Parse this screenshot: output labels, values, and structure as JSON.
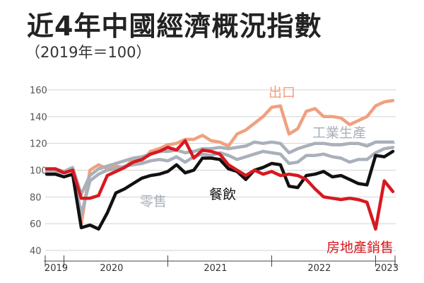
{
  "chart_data": {
    "type": "line",
    "title": "近4年中國經濟概況指數",
    "subtitle": "（2019年＝100）",
    "xlabel": "",
    "ylabel": "",
    "x_tick_labels": [
      "2019",
      "2020",
      "2021",
      "2022",
      "2023"
    ],
    "y_ticks": [
      40,
      60,
      80,
      100,
      120,
      140,
      160
    ],
    "ylim": [
      40,
      162
    ],
    "grid": "horizontal",
    "x": [
      "2019-11",
      "2019-12",
      "2020-01",
      "2020-02",
      "2020-03",
      "2020-04",
      "2020-05",
      "2020-06",
      "2020-07",
      "2020-08",
      "2020-09",
      "2020-10",
      "2020-11",
      "2020-12",
      "2021-01",
      "2021-02",
      "2021-03",
      "2021-04",
      "2021-05",
      "2021-06",
      "2021-07",
      "2021-08",
      "2021-09",
      "2021-10",
      "2021-11",
      "2021-12",
      "2022-01",
      "2022-02",
      "2022-03",
      "2022-04",
      "2022-05",
      "2022-06",
      "2022-07",
      "2022-08",
      "2022-09",
      "2022-10",
      "2022-11",
      "2022-12",
      "2023-01",
      "2023-02",
      "2023-03"
    ],
    "series": [
      {
        "name": "出口",
        "color": "#f0a080",
        "values": [
          101,
          101,
          99,
          100,
          60,
          100,
          104,
          101,
          103,
          102,
          108,
          107,
          114,
          116,
          119,
          120,
          123,
          123,
          126,
          122,
          121,
          118,
          127,
          130,
          135,
          140,
          147,
          148,
          127,
          131,
          144,
          146,
          140,
          140,
          139,
          134,
          137,
          140,
          148,
          151,
          152
        ]
      },
      {
        "name": "工業生產",
        "color": "#a9b0b9",
        "values": [
          100,
          100,
          99,
          102,
          82,
          96,
          101,
          103,
          105,
          107,
          109,
          110,
          112,
          114,
          114,
          115,
          113,
          114,
          116,
          116,
          117,
          116,
          117,
          118,
          121,
          120,
          121,
          120,
          113,
          116,
          118,
          120,
          120,
          119,
          119,
          120,
          120,
          118,
          121,
          121,
          121
        ]
      },
      {
        "name": "零售",
        "color": "#a9b0b9",
        "values": [
          99,
          99,
          98,
          100,
          67,
          92,
          97,
          100,
          101,
          103,
          104,
          105,
          107,
          108,
          107,
          110,
          106,
          110,
          112,
          111,
          113,
          111,
          108,
          110,
          112,
          114,
          113,
          112,
          105,
          106,
          111,
          111,
          112,
          110,
          109,
          106,
          108,
          108,
          113,
          116,
          117
        ]
      },
      {
        "name": "餐飲",
        "color": "#111111",
        "values": [
          97,
          97,
          95,
          97,
          57,
          59,
          56,
          68,
          83,
          86,
          90,
          94,
          96,
          97,
          99,
          104,
          98,
          100,
          109,
          109,
          108,
          101,
          99,
          93,
          100,
          102,
          105,
          104,
          88,
          87,
          96,
          97,
          99,
          95,
          96,
          93,
          90,
          89,
          111,
          110,
          114
        ]
      },
      {
        "name": "房地產銷售",
        "color": "#d71920",
        "values": [
          101,
          101,
          98,
          100,
          79,
          79,
          81,
          96,
          99,
          102,
          106,
          108,
          112,
          114,
          117,
          115,
          122,
          109,
          115,
          114,
          112,
          104,
          100,
          96,
          100,
          97,
          99,
          96,
          97,
          96,
          93,
          86,
          80,
          79,
          78,
          79,
          78,
          76,
          56,
          92,
          84
        ]
      }
    ]
  }
}
